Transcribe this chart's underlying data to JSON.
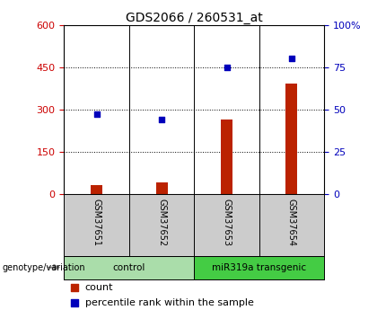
{
  "title": "GDS2066 / 260531_at",
  "samples": [
    "GSM37651",
    "GSM37652",
    "GSM37653",
    "GSM37654"
  ],
  "counts": [
    30,
    40,
    265,
    390
  ],
  "percentile_ranks": [
    47,
    44,
    75,
    80
  ],
  "groups": [
    {
      "label": "control",
      "color": "#aaddaa"
    },
    {
      "label": "miR319a transgenic",
      "color": "#44cc44"
    }
  ],
  "left_ylim": [
    0,
    600
  ],
  "right_ylim": [
    0,
    100
  ],
  "left_yticks": [
    0,
    150,
    300,
    450,
    600
  ],
  "right_yticks": [
    0,
    25,
    50,
    75,
    100
  ],
  "left_tick_color": "#cc0000",
  "right_tick_color": "#0000bb",
  "bar_color": "#bb2200",
  "dot_color": "#0000bb",
  "bg_color": "#ffffff",
  "sample_area_color": "#cccccc",
  "genotype_label": "genotype/variation",
  "legend_count": "count",
  "legend_pct": "percentile rank within the sample"
}
